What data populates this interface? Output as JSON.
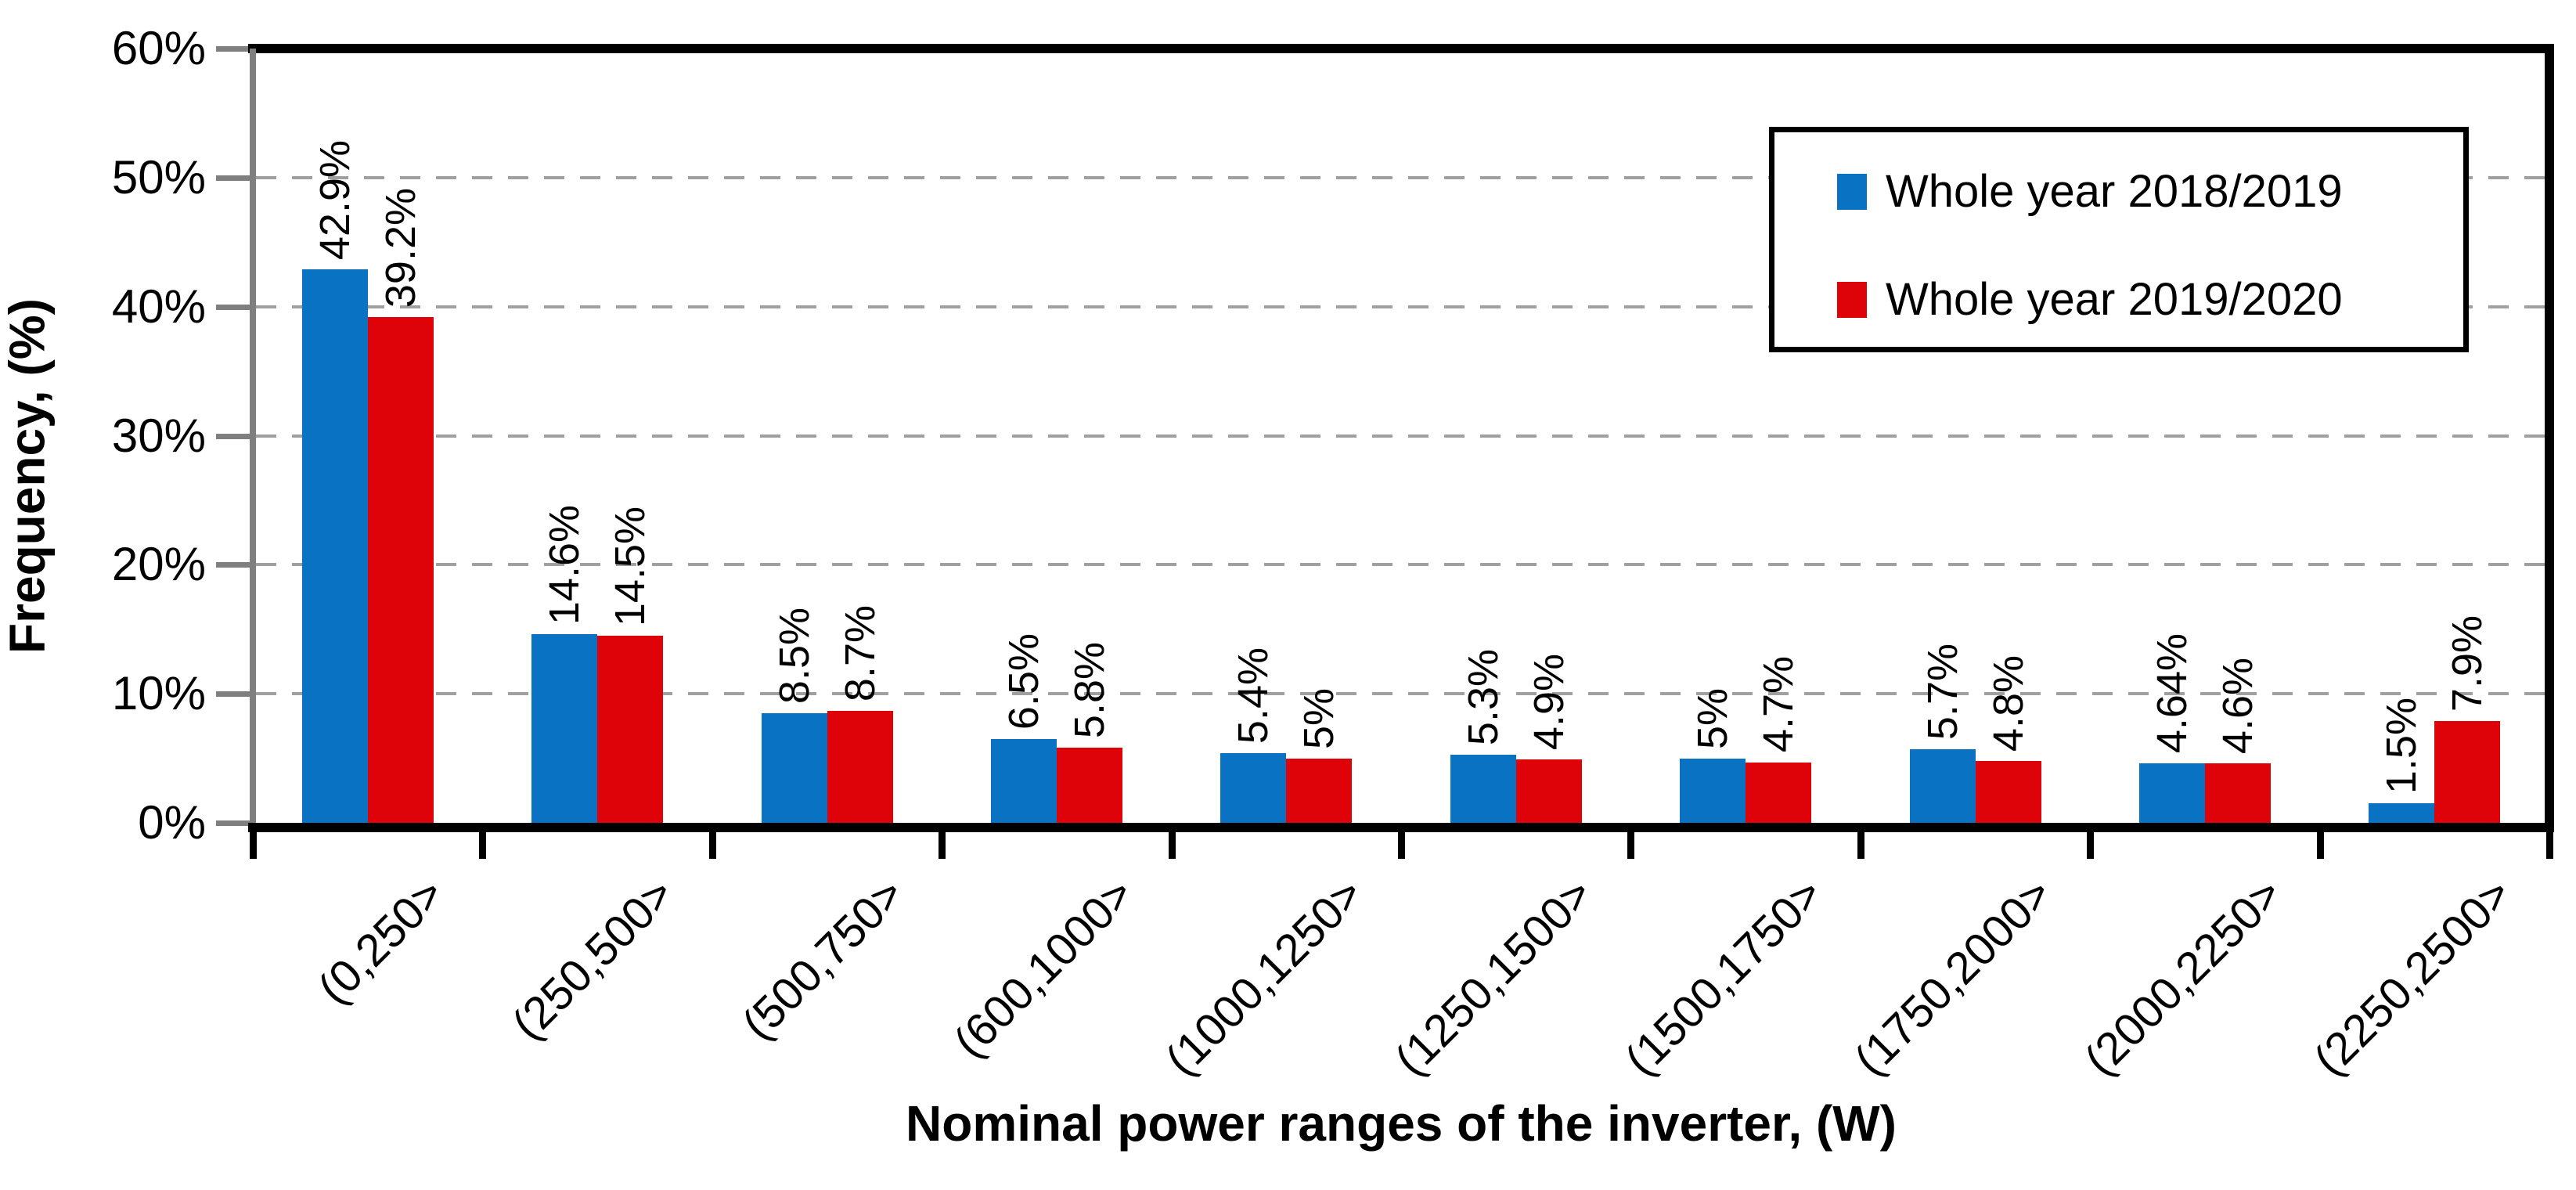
{
  "chart_data": {
    "type": "bar",
    "title": "",
    "xlabel": "Nominal power ranges of the inverter, (W)",
    "ylabel": "Frequency, (%)",
    "categories": [
      "(0,250>",
      "(250,500>",
      "(500,750>",
      "(600,1000>",
      "(1000,1250>",
      "(1250,1500>",
      "(1500,1750>",
      "(1750,2000>",
      "(2000,2250>",
      "(2250,2500>"
    ],
    "series": [
      {
        "name": "Whole year 2018/2019",
        "color": "#0972c3",
        "values": [
          42.9,
          14.6,
          8.5,
          6.5,
          5.4,
          5.3,
          5.0,
          5.7,
          4.64,
          1.5
        ],
        "data_labels": [
          "42.9%",
          "14.6%",
          "8.5%",
          "6.5%",
          "5.4%",
          "5.3%",
          "5%",
          "5.7%",
          "4.64%",
          "1.5%"
        ]
      },
      {
        "name": "Whole year 2019/2020",
        "color": "#de0209",
        "values": [
          39.2,
          14.5,
          8.7,
          5.8,
          5.0,
          4.9,
          4.7,
          4.8,
          4.6,
          7.9
        ],
        "data_labels": [
          "39.2%",
          "14.5%",
          "8.7%",
          "5.8%",
          "5%",
          "4.9%",
          "4.7%",
          "4.8%",
          "4.6%",
          "7.9%"
        ]
      }
    ],
    "y_axis": {
      "min": 0,
      "max": 60,
      "step": 10,
      "tick_labels": [
        "0%",
        "10%",
        "20%",
        "30%",
        "40%",
        "50%",
        "60%"
      ]
    },
    "grid": "horizontal dashed",
    "legend_position": "top-right"
  },
  "colors": {
    "series1_blue": "#0972c3",
    "series2_red": "#de0209",
    "axis_line_gray": "#7f7f7f",
    "gridline_gray": "#a0a0a0",
    "frame_black": "#000000",
    "background": "#ffffff",
    "text": "#000000"
  }
}
